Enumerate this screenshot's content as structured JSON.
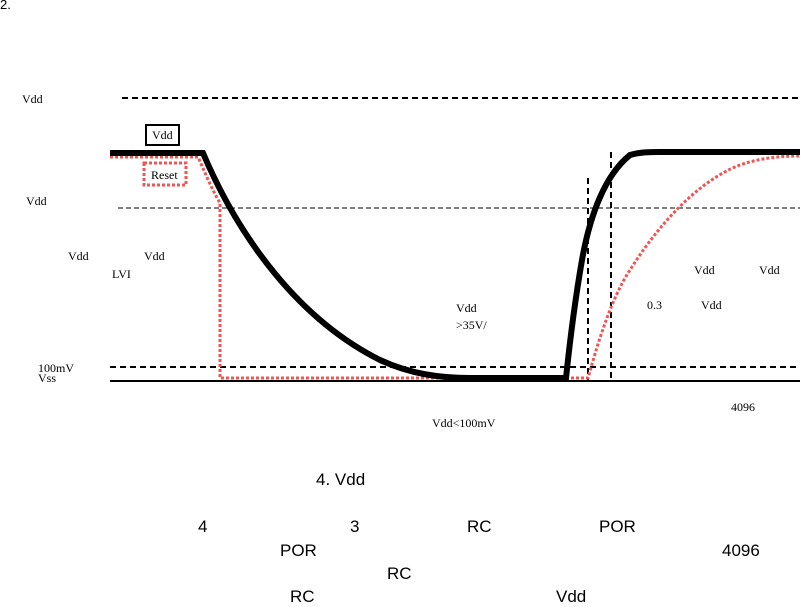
{
  "page": {
    "corner_number": "2."
  },
  "diagram": {
    "labels": {
      "vdd_top": "Vdd",
      "vdd_mid": "Vdd",
      "vdd_left1": "Vdd",
      "vdd_left2": "Vdd",
      "lvi": "LVI",
      "vdd_center": "Vdd",
      "rate": ">35V/",
      "vdd_right1": "Vdd",
      "vdd_right2": "Vdd",
      "coef": "0.3",
      "vdd_right3": "Vdd",
      "mv100": "100mV",
      "vss": "Vss",
      "count": "4096",
      "vdd_low": "Vdd<100mV"
    },
    "legend": {
      "vdd": "Vdd",
      "reset": "Reset"
    },
    "colors": {
      "vdd_curve": "#000000",
      "reset_curve": "#ee5555",
      "dashed": "#000000"
    }
  },
  "caption": "4. Vdd",
  "body_lines": {
    "line1": [
      "4",
      "3",
      "RC",
      "POR"
    ],
    "line2": [
      "POR",
      "4096"
    ],
    "line3": [
      "RC"
    ],
    "line4": [
      "RC",
      "Vdd"
    ]
  }
}
